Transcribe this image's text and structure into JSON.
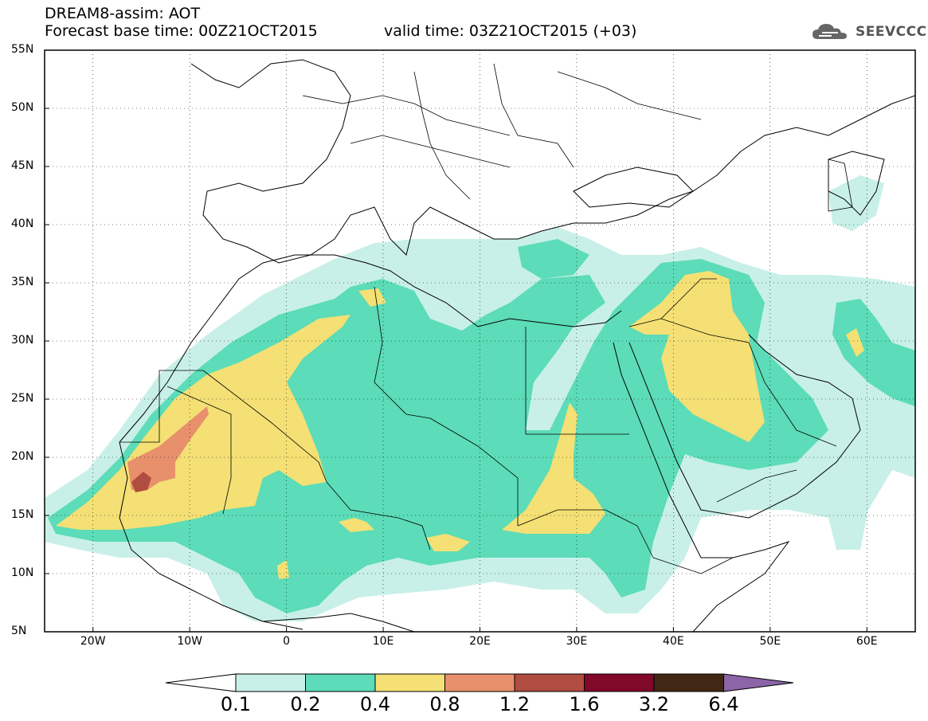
{
  "header": {
    "title": "DREAM8-assim: AOT",
    "base_time": "Forecast base time: 00Z21OCT2015",
    "valid_time": "valid time: 03Z21OCT2015 (+03)",
    "logo_text": "SEEVCCC"
  },
  "map": {
    "lat_range": [
      5,
      55
    ],
    "lon_range": [
      -25,
      65
    ],
    "lat_ticks": [
      "5N",
      "10N",
      "15N",
      "20N",
      "25N",
      "30N",
      "35N",
      "40N",
      "45N",
      "50N",
      "55N"
    ],
    "lon_ticks": [
      "20W",
      "10W",
      "0",
      "10E",
      "20E",
      "30E",
      "40E",
      "50E",
      "60E"
    ]
  },
  "colorbar": {
    "labels": [
      "0.1",
      "0.2",
      "0.4",
      "0.8",
      "1.2",
      "1.6",
      "3.2",
      "6.4"
    ],
    "colors": {
      "c1": "#c8f0e8",
      "c2": "#5cdcb8",
      "c3": "#f4e074",
      "c4": "#e8906c",
      "c5": "#b04c40",
      "c6": "#800828",
      "c7": "#402814",
      "c8": "#8c64a8"
    }
  }
}
